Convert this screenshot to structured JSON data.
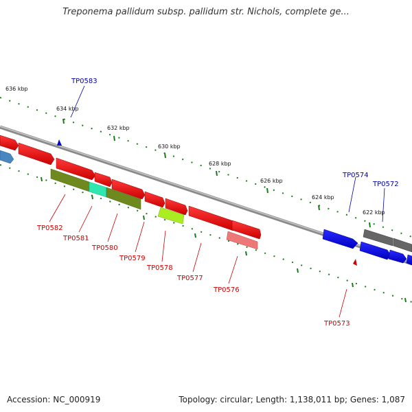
{
  "title": "Treponema pallidum subsp. pallidum str. Nichols, complete ge...",
  "accession": "Accession: NC_000919",
  "topology": "Topology: circular; Length: 1,138,011 bp; Genes: 1,087",
  "colors": {
    "forward_label": "#0000aa",
    "reverse_label": "#cc0000",
    "tick": "#1a7a1a",
    "backbone": "#888888"
  },
  "ticks": [
    {
      "label": "636 kbp"
    },
    {
      "label": "634 kbp"
    },
    {
      "label": "632 kbp"
    },
    {
      "label": "630 kbp"
    },
    {
      "label": "628 kbp"
    },
    {
      "label": "626 kbp"
    },
    {
      "label": "624 kbp"
    },
    {
      "label": "622 kbp"
    }
  ],
  "gene_labels": [
    {
      "label": "TP0583",
      "strand": "forward"
    },
    {
      "label": "TP0574",
      "strand": "forward"
    },
    {
      "label": "TP0572",
      "strand": "forward"
    },
    {
      "label": "TP0582",
      "strand": "reverse"
    },
    {
      "label": "TP0581",
      "strand": "reverse"
    },
    {
      "label": "TP0580",
      "strand": "reverse"
    },
    {
      "label": "TP0579",
      "strand": "reverse"
    },
    {
      "label": "TP0578",
      "strand": "reverse"
    },
    {
      "label": "TP0577",
      "strand": "reverse"
    },
    {
      "label": "TP0576",
      "strand": "reverse"
    },
    {
      "label": "TP0573",
      "strand": "reverse"
    }
  ]
}
